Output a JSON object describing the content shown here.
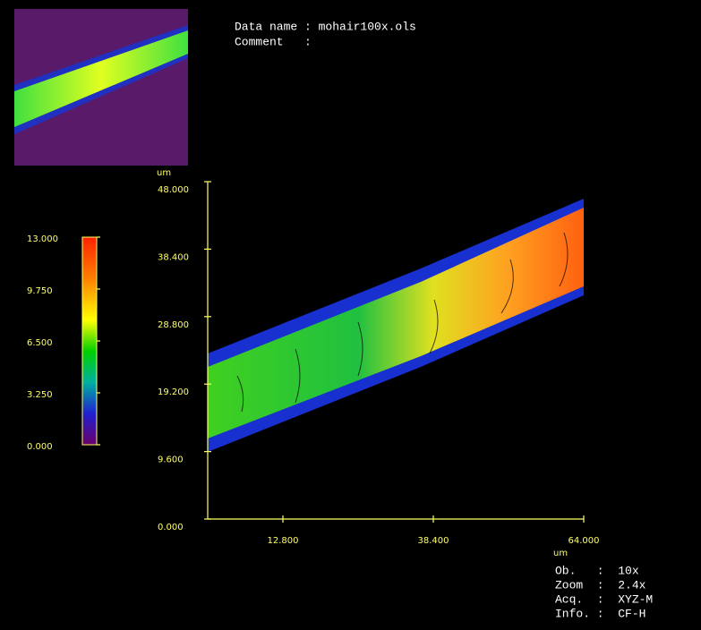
{
  "header": {
    "data_name": "Data name : mohair100x.ols",
    "comment": "Comment   :"
  },
  "colorbar": {
    "range": [
      0,
      13
    ],
    "ticks": [
      {
        "value": 0,
        "label": "0.000"
      },
      {
        "value": 3.25,
        "label": "3.250"
      },
      {
        "value": 6.5,
        "label": "6.500"
      },
      {
        "value": 9.75,
        "label": "9.750"
      },
      {
        "value": 13,
        "label": "13.000"
      }
    ]
  },
  "plot": {
    "y_unit": "um",
    "x_unit": "um",
    "ylim": [
      0,
      48
    ],
    "xlim": [
      0,
      64
    ],
    "yticks": [
      {
        "value": 0,
        "label": "0.000"
      },
      {
        "value": 9.6,
        "label": "9.600"
      },
      {
        "value": 19.2,
        "label": "19.200"
      },
      {
        "value": 28.8,
        "label": "28.800"
      },
      {
        "value": 38.4,
        "label": "38.400"
      },
      {
        "value": 48,
        "label": "48.000"
      }
    ],
    "xticks": [
      {
        "value": 12.8,
        "label": "12.800"
      },
      {
        "value": 38.4,
        "label": "38.400"
      },
      {
        "value": 64,
        "label": "64.000"
      }
    ]
  },
  "info": [
    "Ob.   :  10x",
    "Zoom  :  2.4x",
    "Acq.  :  XYZ-M",
    "Info. :  CF-H"
  ]
}
